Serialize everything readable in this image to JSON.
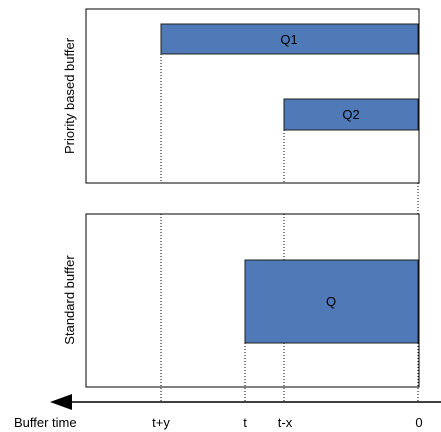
{
  "panels": {
    "top": {
      "label": "Priority based buffer",
      "bars": [
        {
          "label": "Q1",
          "start": "t+y",
          "end": "0"
        },
        {
          "label": "Q2",
          "start": "t-x",
          "end": "0"
        }
      ]
    },
    "bottom": {
      "label": "Standard buffer",
      "bars": [
        {
          "label": "Q",
          "start": "t",
          "end": "0"
        }
      ]
    }
  },
  "axis": {
    "label": "Buffer time",
    "ticks": [
      "t+y",
      "t",
      "t-x",
      "0"
    ]
  },
  "colors": {
    "bar_fill": "#4f79b7",
    "bar_stroke": "#1f1f1f",
    "frame": "#000000"
  }
}
